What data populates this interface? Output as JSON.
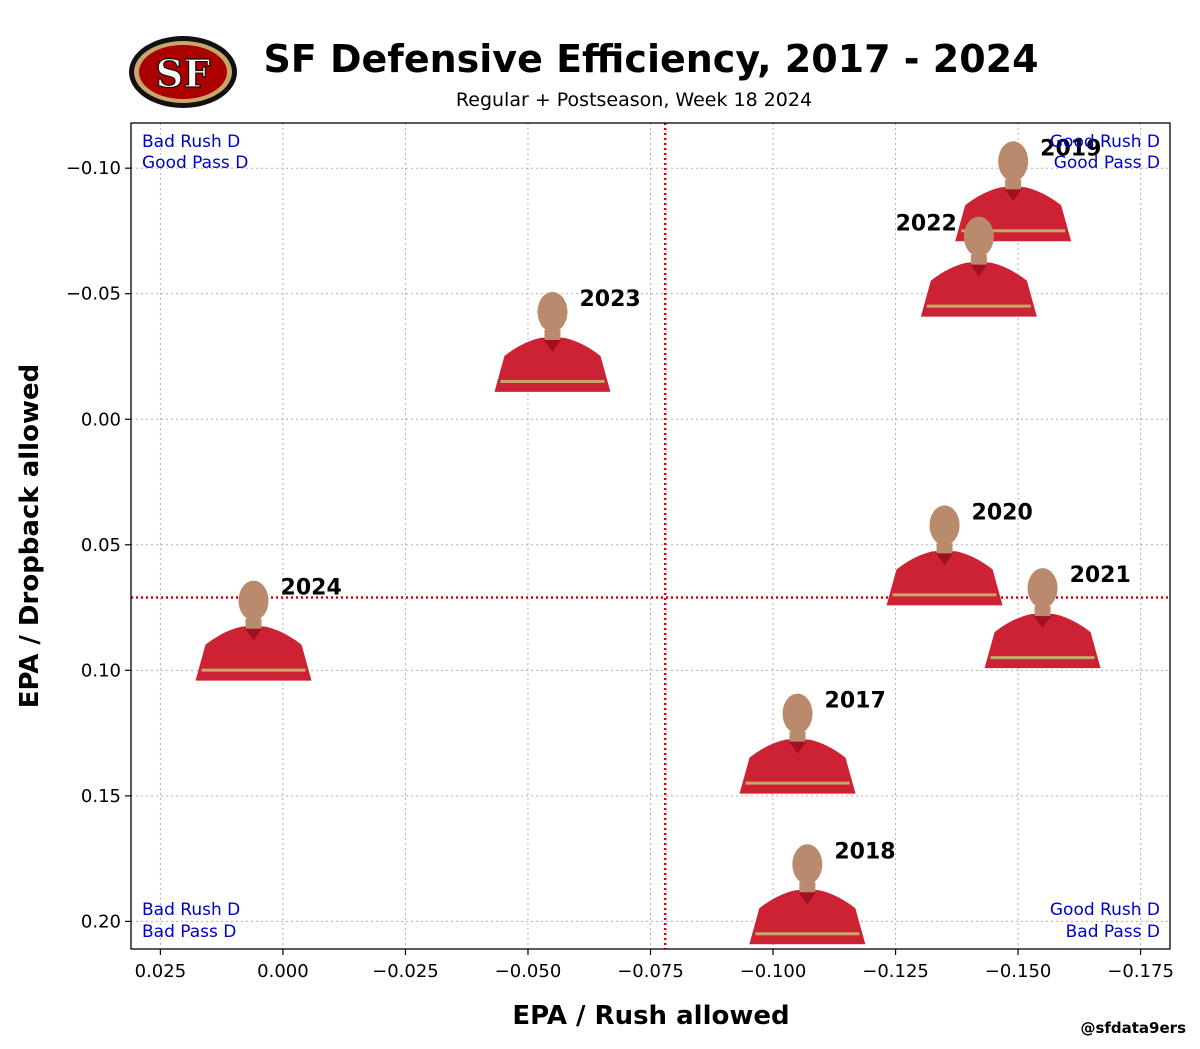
{
  "chart_data": {
    "type": "scatter",
    "title": "SF Defensive Efficiency, 2017 - 2024",
    "subtitle": "Regular + Postseason, Week 18 2024",
    "xlabel": "EPA / Rush allowed",
    "ylabel": "EPA / Dropback allowed",
    "x_inverted": true,
    "y_inverted": true,
    "xlim": [
      0.031,
      -0.181
    ],
    "ylim": [
      -0.118,
      0.211
    ],
    "xticks": [
      0.025,
      0.0,
      -0.025,
      -0.05,
      -0.075,
      -0.1,
      -0.125,
      -0.15,
      -0.175
    ],
    "xtick_labels": [
      "0.025",
      "0.000",
      "−0.025",
      "−0.050",
      "−0.075",
      "−0.100",
      "−0.125",
      "−0.150",
      "−0.175"
    ],
    "yticks": [
      -0.1,
      -0.05,
      0.0,
      0.05,
      0.1,
      0.15,
      0.2
    ],
    "ytick_labels": [
      "−0.10",
      "−0.05",
      "0.00",
      "0.05",
      "0.10",
      "0.15",
      "0.20"
    ],
    "grid": true,
    "reference_lines": {
      "x": -0.078,
      "y": 0.071,
      "color": "#dd0000"
    },
    "quadrant_labels": {
      "top_left": [
        "Bad Rush D",
        "Good Pass D"
      ],
      "top_right": [
        "Good Rush D",
        "Good Pass D"
      ],
      "bottom_left": [
        "Bad Rush D",
        "Bad Pass D"
      ],
      "bottom_right": [
        "Good Rush D",
        "Bad Pass D"
      ]
    },
    "points": [
      {
        "label": "2017",
        "x": -0.105,
        "y": 0.13
      },
      {
        "label": "2018",
        "x": -0.107,
        "y": 0.19
      },
      {
        "label": "2019",
        "x": -0.149,
        "y": -0.09
      },
      {
        "label": "2020",
        "x": -0.135,
        "y": 0.055
      },
      {
        "label": "2021",
        "x": -0.155,
        "y": 0.08
      },
      {
        "label": "2022",
        "x": -0.142,
        "y": -0.06
      },
      {
        "label": "2023",
        "x": -0.055,
        "y": -0.03
      },
      {
        "label": "2024",
        "x": 0.006,
        "y": 0.085
      }
    ]
  },
  "credit": "@sfdata9ers",
  "colors": {
    "quadrant_text": "#0000cc",
    "reference_line": "#dd0000",
    "logo_red": "#aa0000",
    "logo_gold": "#c9a66b",
    "shirt_red": "#cc2233",
    "skin": "#b98a6c"
  }
}
